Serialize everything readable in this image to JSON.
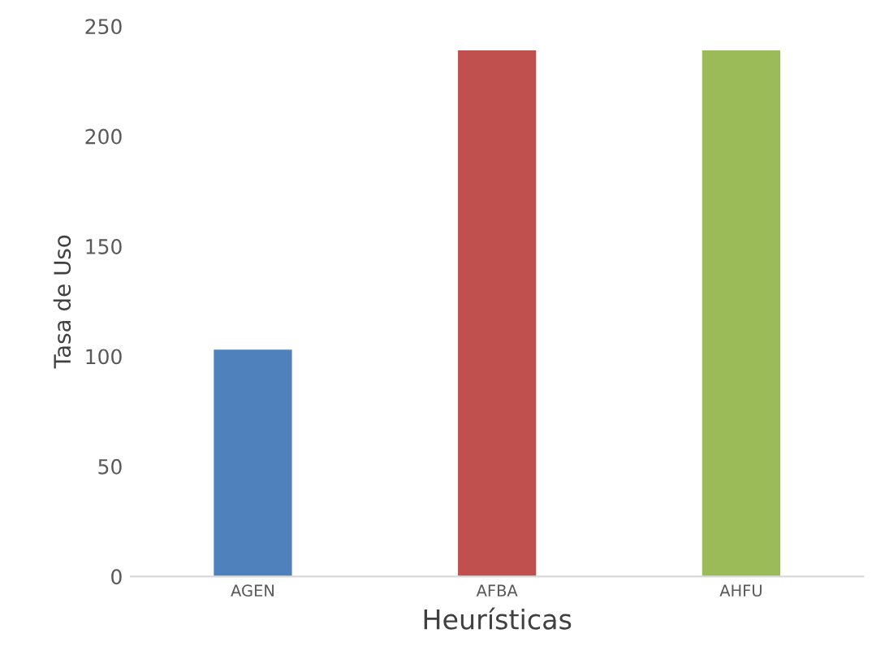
{
  "chart_data": {
    "type": "bar",
    "xlabel": "Heurísticas",
    "ylabel": "Tasa de Uso",
    "categories": [
      "AGEN",
      "AFBA",
      "AHFU"
    ],
    "values": [
      103,
      239,
      239
    ],
    "colors": [
      "#4f81bd",
      "#c0504d",
      "#9bbb59"
    ],
    "ylim": [
      0,
      250
    ],
    "yticks": [
      0,
      50,
      100,
      150,
      200,
      250
    ],
    "grid": false
  }
}
